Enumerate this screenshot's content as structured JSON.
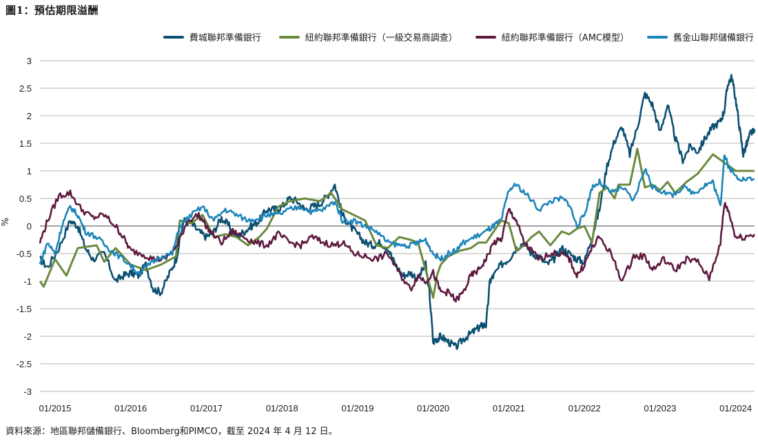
{
  "title": "圖1：預估期限溢酬",
  "source": "資料來源：地區聯邦儲備銀行、Bloomberg和PIMCO，截至 2024 年 4 月 12 日。",
  "chart_data": {
    "type": "line",
    "title": "圖1：預估期限溢酬",
    "ylabel": "%",
    "xlabel": "",
    "ylim": [
      -3,
      3
    ],
    "yticks": [
      -3,
      -2.5,
      -2,
      -1.5,
      -1,
      -0.5,
      0,
      0.5,
      1,
      1.5,
      2,
      2.5,
      3
    ],
    "ytick_labels": [
      "-3",
      "-2.5",
      "-2",
      "-1.5",
      "-1",
      "-0.5",
      "0",
      "0.5",
      "1",
      "1.5",
      "2",
      "2.5",
      "3"
    ],
    "xlim": [
      2015.0,
      2024.45
    ],
    "xticks": [
      2015,
      2016,
      2017,
      2018,
      2019,
      2020,
      2021,
      2022,
      2023,
      2024
    ],
    "xtick_labels": [
      "01/2015",
      "01/2016",
      "01/2017",
      "01/2018",
      "01/2019",
      "01/2020",
      "01/2021",
      "01/2022",
      "01/2023",
      "01/2024"
    ],
    "grid": true,
    "legend_position": "top-right",
    "series": [
      {
        "name": "費城聯邦準備銀行",
        "color": "#0b4f71",
        "x": [
          2015.0,
          2015.1,
          2015.25,
          2015.4,
          2015.5,
          2015.6,
          2015.7,
          2015.85,
          2016.0,
          2016.1,
          2016.2,
          2016.3,
          2016.4,
          2016.5,
          2016.6,
          2016.7,
          2016.8,
          2016.9,
          2017.0,
          2017.1,
          2017.2,
          2017.3,
          2017.4,
          2017.5,
          2017.6,
          2017.7,
          2017.8,
          2017.9,
          2018.0,
          2018.1,
          2018.2,
          2018.3,
          2018.4,
          2018.5,
          2018.6,
          2018.7,
          2018.8,
          2018.9,
          2019.0,
          2019.1,
          2019.2,
          2019.3,
          2019.4,
          2019.5,
          2019.6,
          2019.7,
          2019.8,
          2019.9,
          2020.0,
          2020.1,
          2020.15,
          2020.2,
          2020.25,
          2020.3,
          2020.4,
          2020.5,
          2020.6,
          2020.7,
          2020.8,
          2020.85,
          2020.9,
          2020.95,
          2021.0,
          2021.1,
          2021.2,
          2021.3,
          2021.4,
          2021.5,
          2021.6,
          2021.7,
          2021.8,
          2021.9,
          2022.0,
          2022.1,
          2022.2,
          2022.3,
          2022.4,
          2022.5,
          2022.6,
          2022.7,
          2022.8,
          2022.9,
          2023.0,
          2023.1,
          2023.2,
          2023.3,
          2023.4,
          2023.5,
          2023.6,
          2023.7,
          2023.8,
          2023.9,
          2024.0,
          2024.05,
          2024.1,
          2024.15,
          2024.2,
          2024.25,
          2024.3,
          2024.35,
          2024.4,
          2024.45
        ],
        "y": [
          -0.6,
          -0.75,
          -0.4,
          0.1,
          0.0,
          -0.4,
          -0.6,
          -0.5,
          -1.0,
          -0.9,
          -0.85,
          -0.9,
          -0.7,
          -1.15,
          -1.2,
          -0.9,
          -0.6,
          0.1,
          0.05,
          -0.1,
          -0.2,
          -0.1,
          0.15,
          0.0,
          -0.2,
          -0.1,
          0.0,
          0.1,
          0.3,
          0.3,
          0.35,
          0.5,
          0.45,
          0.3,
          0.35,
          0.4,
          0.55,
          0.75,
          0.2,
          0.0,
          -0.15,
          -0.3,
          -0.35,
          -0.3,
          -0.4,
          -0.7,
          -0.9,
          -0.85,
          -0.95,
          -0.7,
          -1.2,
          -2.1,
          -2.05,
          -2.0,
          -2.1,
          -2.2,
          -2.05,
          -1.95,
          -1.85,
          -1.8,
          -1.8,
          -1.0,
          -0.9,
          -0.7,
          -0.6,
          -0.4,
          -0.3,
          -0.5,
          -0.55,
          -0.7,
          -0.6,
          -0.4,
          -0.5,
          -0.6,
          -0.65,
          -0.2,
          0.3,
          1.1,
          1.55,
          1.8,
          1.3,
          1.8,
          2.4,
          2.2,
          1.7,
          2.2,
          1.6,
          1.2,
          1.45,
          1.35,
          1.6,
          1.8,
          1.9,
          2.1,
          2.6,
          2.7,
          2.3,
          1.8,
          1.3,
          1.5,
          1.7,
          1.7
        ]
      },
      {
        "name": "紐約聯邦準備銀行（一級交易商調查）",
        "color": "#6a8a3e",
        "x": [
          2015.0,
          2015.05,
          2015.2,
          2015.35,
          2015.5,
          2015.75,
          2015.85,
          2016.0,
          2016.2,
          2016.4,
          2016.6,
          2016.8,
          2016.85,
          2017.0,
          2017.15,
          2017.3,
          2017.45,
          2017.6,
          2017.75,
          2017.9,
          2018.0,
          2018.15,
          2018.3,
          2018.5,
          2018.7,
          2018.85,
          2019.0,
          2019.15,
          2019.3,
          2019.45,
          2019.6,
          2019.75,
          2019.9,
          2020.0,
          2020.2,
          2020.25,
          2020.3,
          2020.4,
          2020.55,
          2020.7,
          2020.8,
          2020.9,
          2021.0,
          2021.1,
          2021.2,
          2021.3,
          2021.4,
          2021.5,
          2021.6,
          2021.75,
          2021.9,
          2022.0,
          2022.1,
          2022.2,
          2022.3,
          2022.4,
          2022.5,
          2022.6,
          2022.65,
          2022.8,
          2022.9,
          2023.0,
          2023.1,
          2023.2,
          2023.3,
          2023.4,
          2023.55,
          2023.7,
          2023.9,
          2024.0,
          2024.1,
          2024.2,
          2024.3,
          2024.45
        ],
        "y": [
          -1.0,
          -1.1,
          -0.6,
          -0.9,
          -0.4,
          -0.35,
          -0.65,
          -0.4,
          -0.7,
          -0.8,
          -0.7,
          -0.55,
          0.1,
          0.05,
          0.2,
          -0.2,
          -0.15,
          -0.2,
          -0.35,
          -0.2,
          -0.05,
          0.35,
          0.45,
          0.5,
          0.45,
          0.6,
          0.3,
          0.2,
          0.1,
          -0.35,
          -0.4,
          -0.2,
          -0.25,
          -0.3,
          -1.3,
          -0.9,
          -0.7,
          -0.55,
          -0.45,
          -0.4,
          -0.3,
          -0.3,
          -0.1,
          0.1,
          0.05,
          -0.45,
          -0.35,
          -0.2,
          -0.1,
          -0.35,
          -0.1,
          -0.15,
          -0.05,
          0.0,
          -0.3,
          0.6,
          0.7,
          0.5,
          0.75,
          0.75,
          1.4,
          0.7,
          0.75,
          0.65,
          0.8,
          0.6,
          0.8,
          0.95,
          1.3,
          1.2,
          1.1,
          1.0,
          1.0,
          1.0
        ]
      },
      {
        "name": "紐約聯邦準備銀行（AMC模型）",
        "color": "#5c1a3f",
        "x": [
          2015.0,
          2015.1,
          2015.25,
          2015.4,
          2015.55,
          2015.7,
          2015.85,
          2016.0,
          2016.1,
          2016.2,
          2016.35,
          2016.5,
          2016.65,
          2016.8,
          2016.95,
          2017.1,
          2017.25,
          2017.4,
          2017.55,
          2017.7,
          2017.85,
          2018.0,
          2018.15,
          2018.3,
          2018.45,
          2018.6,
          2018.75,
          2018.9,
          2019.0,
          2019.15,
          2019.3,
          2019.45,
          2019.6,
          2019.75,
          2019.9,
          2020.0,
          2020.1,
          2020.2,
          2020.3,
          2020.4,
          2020.5,
          2020.6,
          2020.7,
          2020.8,
          2020.9,
          2021.0,
          2021.1,
          2021.2,
          2021.3,
          2021.4,
          2021.5,
          2021.6,
          2021.75,
          2021.9,
          2022.0,
          2022.1,
          2022.2,
          2022.3,
          2022.4,
          2022.55,
          2022.7,
          2022.85,
          2023.0,
          2023.1,
          2023.25,
          2023.4,
          2023.55,
          2023.7,
          2023.85,
          2024.0,
          2024.05,
          2024.1,
          2024.2,
          2024.3,
          2024.45
        ],
        "y": [
          -0.3,
          0.1,
          0.55,
          0.6,
          0.3,
          0.15,
          0.2,
          0.0,
          -0.2,
          -0.45,
          -0.5,
          -0.6,
          -0.6,
          -0.4,
          0.1,
          0.2,
          -0.1,
          -0.3,
          -0.1,
          -0.2,
          -0.3,
          -0.35,
          -0.15,
          -0.3,
          -0.35,
          -0.2,
          -0.3,
          -0.35,
          -0.3,
          -0.5,
          -0.55,
          -0.6,
          -0.5,
          -0.85,
          -1.15,
          -0.9,
          -1.0,
          -0.85,
          -1.2,
          -1.2,
          -1.35,
          -1.2,
          -0.9,
          -0.8,
          -0.6,
          -0.3,
          -0.25,
          0.3,
          0.1,
          -0.3,
          -0.45,
          -0.6,
          -0.5,
          -0.5,
          -0.6,
          -0.9,
          -0.7,
          -0.4,
          -0.2,
          -0.5,
          -1.0,
          -0.55,
          -0.55,
          -0.8,
          -0.6,
          -0.8,
          -0.6,
          -0.65,
          -0.95,
          -0.3,
          0.4,
          0.3,
          -0.2,
          -0.2,
          -0.15
        ]
      },
      {
        "name": "舊金山聯邦儲備銀行",
        "color": "#1b84b9",
        "x": [
          2015.0,
          2015.1,
          2015.2,
          2015.3,
          2015.4,
          2015.5,
          2015.6,
          2015.75,
          2015.9,
          2016.0,
          2016.15,
          2016.3,
          2016.45,
          2016.6,
          2016.75,
          2016.85,
          2017.0,
          2017.15,
          2017.3,
          2017.45,
          2017.6,
          2017.75,
          2017.9,
          2018.0,
          2018.15,
          2018.3,
          2018.45,
          2018.6,
          2018.75,
          2018.9,
          2019.0,
          2019.15,
          2019.3,
          2019.45,
          2019.6,
          2019.75,
          2019.9,
          2020.0,
          2020.1,
          2020.2,
          2020.3,
          2020.4,
          2020.5,
          2020.6,
          2020.75,
          2020.9,
          2021.0,
          2021.1,
          2021.2,
          2021.3,
          2021.45,
          2021.6,
          2021.75,
          2021.9,
          2022.0,
          2022.1,
          2022.2,
          2022.3,
          2022.4,
          2022.55,
          2022.7,
          2022.85,
          2023.0,
          2023.1,
          2023.2,
          2023.35,
          2023.5,
          2023.65,
          2023.8,
          2023.9,
          2024.0,
          2024.05,
          2024.1,
          2024.2,
          2024.3,
          2024.45
        ],
        "y": [
          -0.7,
          -0.3,
          -0.5,
          0.05,
          0.35,
          0.2,
          -0.1,
          -0.2,
          -0.4,
          -0.5,
          -0.65,
          -0.85,
          -0.7,
          -0.55,
          -0.5,
          0.0,
          0.2,
          0.35,
          0.1,
          0.3,
          0.2,
          0.1,
          0.15,
          0.2,
          0.2,
          0.3,
          0.35,
          0.25,
          0.3,
          0.45,
          0.1,
          0.1,
          0.0,
          -0.1,
          -0.3,
          -0.35,
          -0.35,
          -0.3,
          -0.25,
          -0.5,
          -0.6,
          -0.5,
          -0.45,
          -0.3,
          -0.2,
          -0.1,
          0.0,
          0.1,
          0.65,
          0.75,
          0.55,
          0.3,
          0.45,
          0.5,
          0.4,
          0.0,
          0.2,
          0.7,
          0.8,
          0.6,
          0.7,
          0.45,
          1.05,
          0.7,
          0.65,
          0.55,
          0.7,
          0.6,
          0.75,
          0.8,
          0.35,
          1.3,
          1.1,
          0.9,
          0.85,
          0.85
        ]
      }
    ]
  }
}
